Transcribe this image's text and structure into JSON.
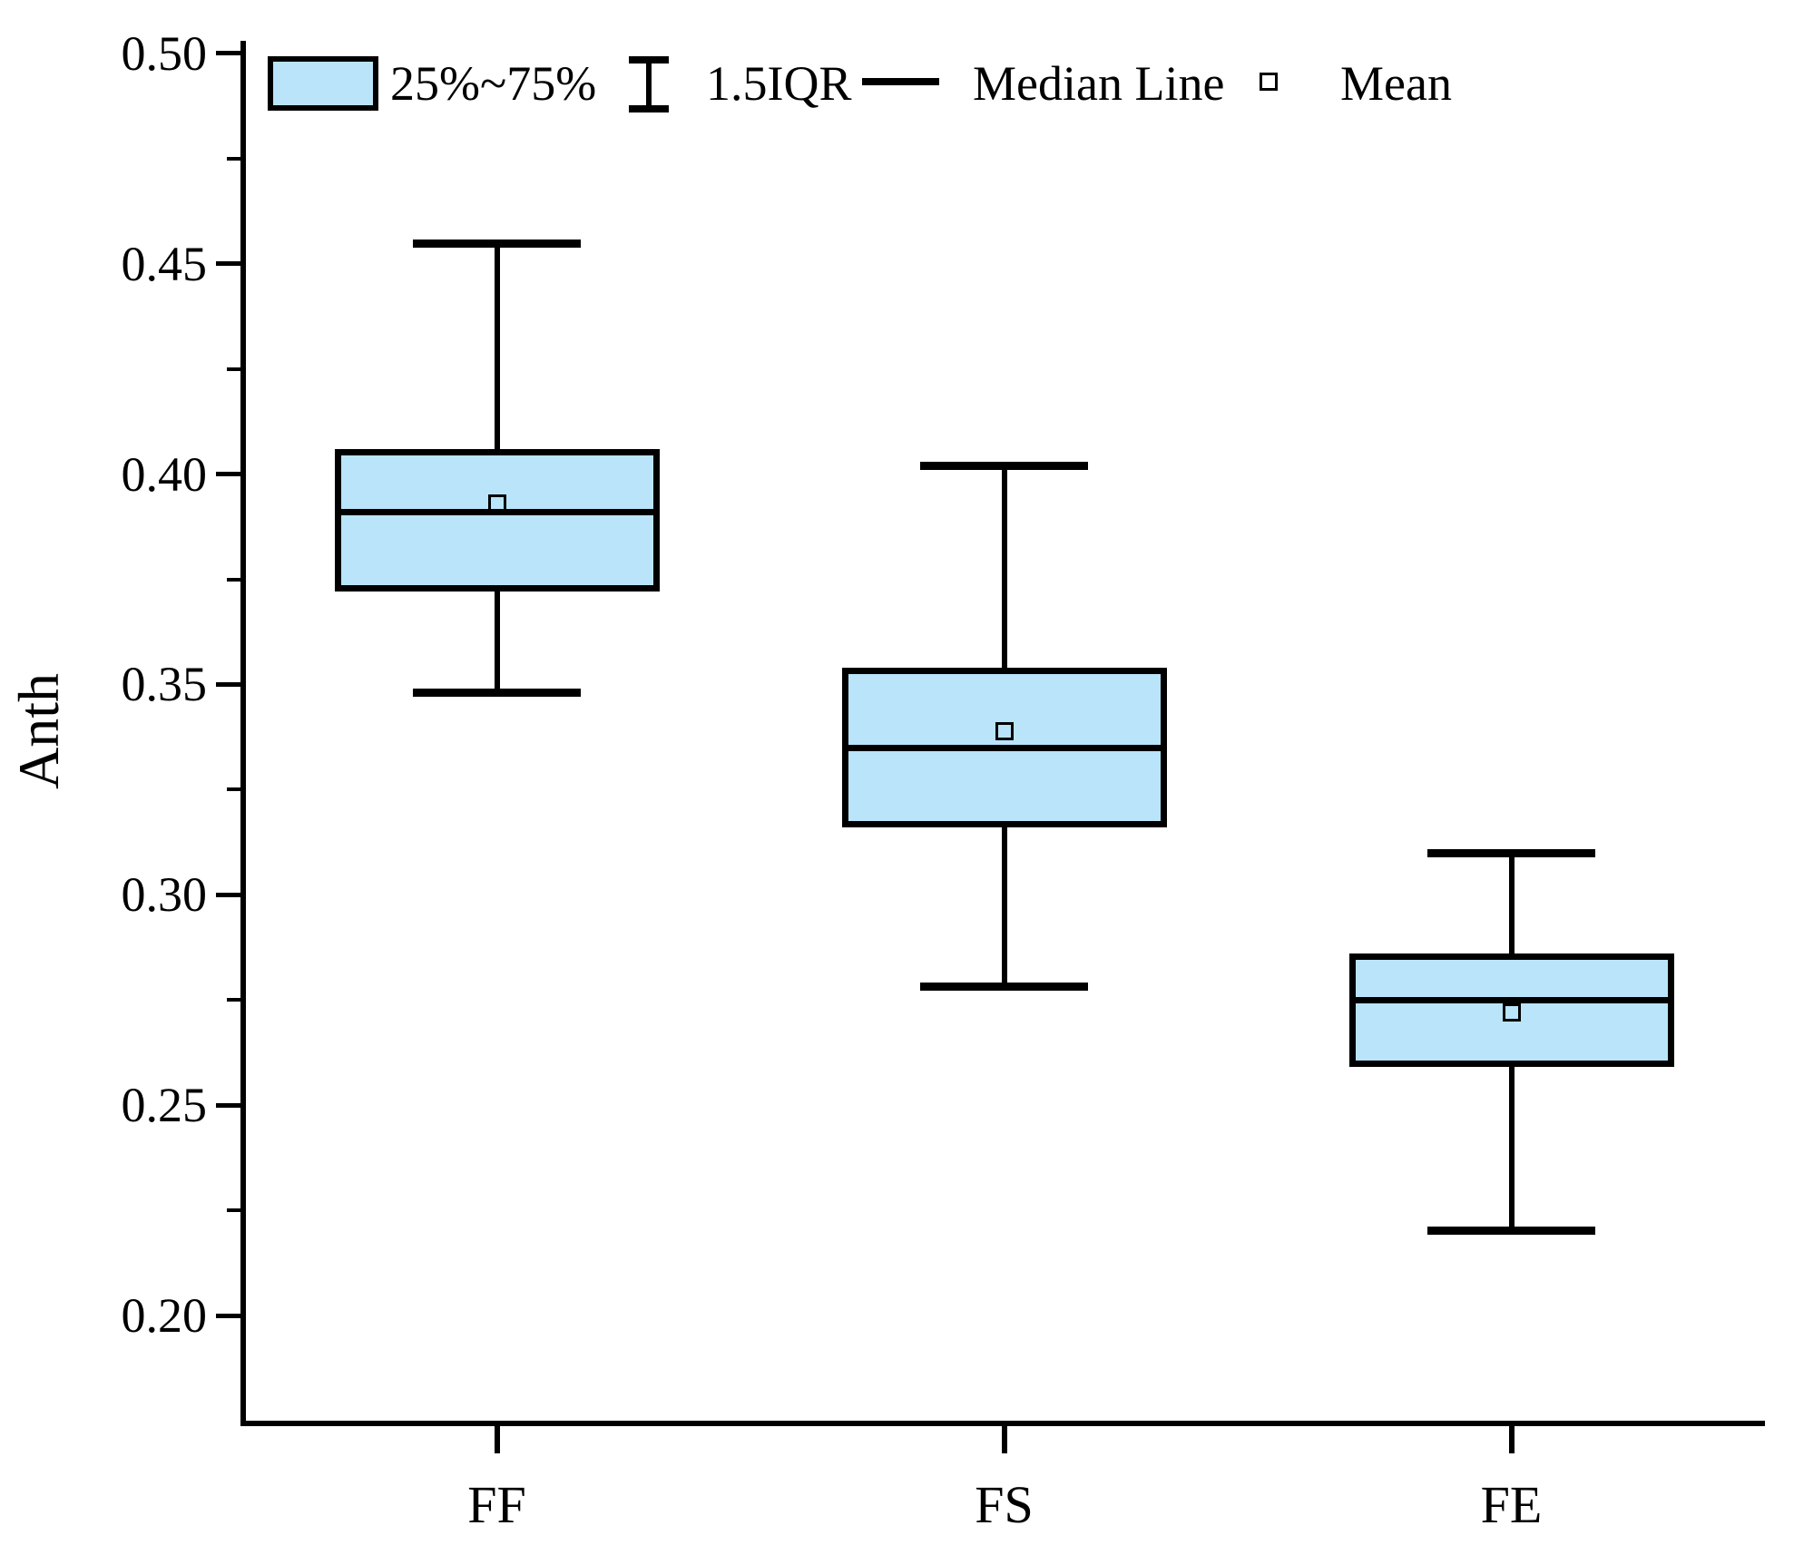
{
  "chart_data": {
    "type": "box",
    "title": "",
    "xlabel": "",
    "ylabel": "Anth",
    "categories": [
      "FF",
      "FS",
      "FE"
    ],
    "series": [
      {
        "category": "FF",
        "whisker_low": 0.348,
        "q1": 0.372,
        "median": 0.391,
        "mean": 0.393,
        "q3": 0.406,
        "whisker_high": 0.455
      },
      {
        "category": "FS",
        "whisker_low": 0.278,
        "q1": 0.316,
        "median": 0.335,
        "mean": 0.339,
        "q3": 0.354,
        "whisker_high": 0.402
      },
      {
        "category": "FE",
        "whisker_low": 0.22,
        "q1": 0.259,
        "median": 0.275,
        "mean": 0.272,
        "q3": 0.286,
        "whisker_high": 0.31
      }
    ],
    "ylim": [
      0.175,
      0.503
    ],
    "y_major_ticks": [
      0.5,
      0.45,
      0.4,
      0.35,
      0.3,
      0.25,
      0.2
    ],
    "y_major_tick_labels": [
      "0.50",
      "0.45",
      "0.40",
      "0.35",
      "0.30",
      "0.25",
      "0.20"
    ],
    "y_minor_ticks": [
      0.475,
      0.425,
      0.375,
      0.325,
      0.275,
      0.225
    ],
    "grid": false,
    "legend": {
      "position": "top-left",
      "items": [
        {
          "marker": "box",
          "label": "25%~75%"
        },
        {
          "marker": "whisker",
          "label": "1.5IQR"
        },
        {
          "marker": "line",
          "label": "Median Line"
        },
        {
          "marker": "square",
          "label": "Mean"
        }
      ]
    },
    "colors": {
      "box_fill": "#b9e4fa",
      "line": "#000000",
      "background": "#ffffff"
    }
  }
}
